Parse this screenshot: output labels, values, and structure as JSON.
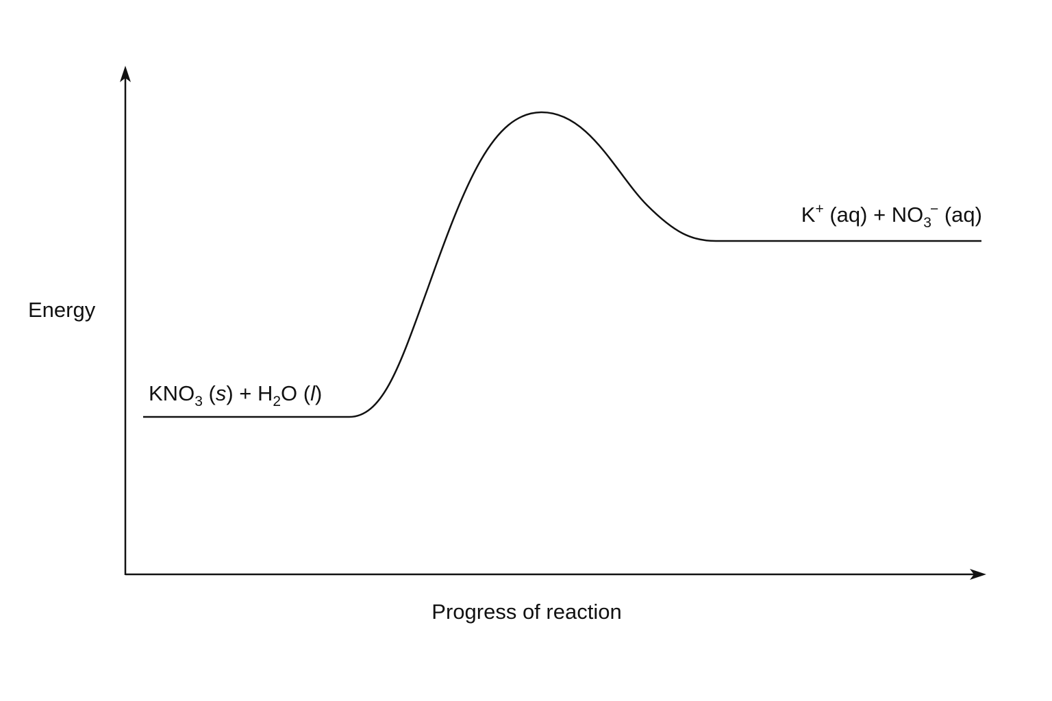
{
  "diagram": {
    "y_axis_label": "Energy",
    "x_axis_label": "Progress of reaction",
    "reactants": {
      "p1": "KNO",
      "p1_sub": "3",
      "p2": " (",
      "p3_italic": "s",
      "p4": ") + H",
      "p4_sub": "2",
      "p5": "O (",
      "p6_italic": "l",
      "p7": ")"
    },
    "products": {
      "p1": "K",
      "p1_sup": "+",
      "p2": " (aq) + NO",
      "p2_sub": "3",
      "p2_sup": "−",
      "p3": " (aq)"
    },
    "line_color": "#111111"
  }
}
